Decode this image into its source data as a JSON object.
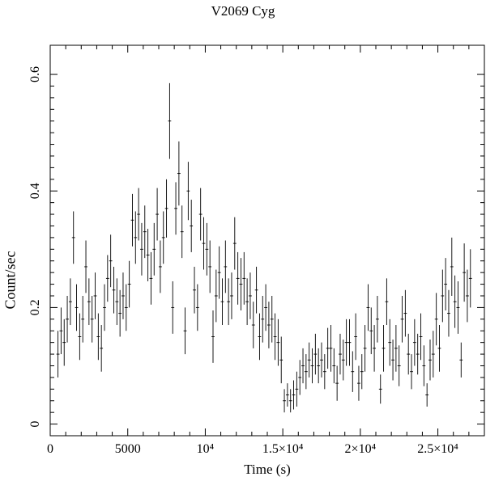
{
  "chart_data": {
    "type": "scatter",
    "title": "V2069 Cyg",
    "xlabel": "Time (s)",
    "ylabel": "Count/sec",
    "xlim": [
      0,
      28000
    ],
    "ylim": [
      -0.02,
      0.65
    ],
    "grid": false,
    "x_ticks": [
      {
        "value": 0,
        "label": "0"
      },
      {
        "value": 5000,
        "label": "5000"
      },
      {
        "value": 10000,
        "label": "10⁴"
      },
      {
        "value": 15000,
        "label": "1.5×10⁴"
      },
      {
        "value": 20000,
        "label": "2×10⁴"
      },
      {
        "value": 25000,
        "label": "2.5×10⁴"
      }
    ],
    "y_ticks": [
      {
        "value": 0,
        "label": "0"
      },
      {
        "value": 0.2,
        "label": "0.2"
      },
      {
        "value": 0.4,
        "label": "0.4"
      },
      {
        "value": 0.6,
        "label": "0.6"
      }
    ],
    "series": [
      {
        "x_err": 100,
        "points": [
          [
            500,
            0.12,
            0.04
          ],
          [
            700,
            0.16,
            0.04
          ],
          [
            900,
            0.14,
            0.04
          ],
          [
            1100,
            0.18,
            0.04
          ],
          [
            1300,
            0.21,
            0.04
          ],
          [
            1500,
            0.32,
            0.045
          ],
          [
            1700,
            0.2,
            0.04
          ],
          [
            1900,
            0.15,
            0.04
          ],
          [
            2100,
            0.18,
            0.04
          ],
          [
            2300,
            0.27,
            0.045
          ],
          [
            2500,
            0.21,
            0.04
          ],
          [
            2700,
            0.18,
            0.04
          ],
          [
            2900,
            0.22,
            0.04
          ],
          [
            3100,
            0.15,
            0.04
          ],
          [
            3300,
            0.13,
            0.04
          ],
          [
            3500,
            0.2,
            0.04
          ],
          [
            3700,
            0.25,
            0.04
          ],
          [
            3900,
            0.28,
            0.045
          ],
          [
            4100,
            0.23,
            0.04
          ],
          [
            4300,
            0.21,
            0.04
          ],
          [
            4500,
            0.19,
            0.04
          ],
          [
            4700,
            0.22,
            0.04
          ],
          [
            4900,
            0.2,
            0.04
          ],
          [
            5100,
            0.24,
            0.04
          ],
          [
            5300,
            0.35,
            0.045
          ],
          [
            5500,
            0.32,
            0.045
          ],
          [
            5700,
            0.36,
            0.045
          ],
          [
            5900,
            0.3,
            0.045
          ],
          [
            6100,
            0.33,
            0.045
          ],
          [
            6300,
            0.29,
            0.045
          ],
          [
            6500,
            0.25,
            0.045
          ],
          [
            6700,
            0.3,
            0.045
          ],
          [
            6900,
            0.36,
            0.045
          ],
          [
            7100,
            0.27,
            0.045
          ],
          [
            7300,
            0.32,
            0.045
          ],
          [
            7500,
            0.37,
            0.05
          ],
          [
            7700,
            0.52,
            0.065
          ],
          [
            7900,
            0.2,
            0.045
          ],
          [
            8100,
            0.37,
            0.045
          ],
          [
            8300,
            0.43,
            0.055
          ],
          [
            8500,
            0.33,
            0.045
          ],
          [
            8700,
            0.16,
            0.04
          ],
          [
            8900,
            0.4,
            0.05
          ],
          [
            9100,
            0.34,
            0.045
          ],
          [
            9300,
            0.23,
            0.04
          ],
          [
            9500,
            0.2,
            0.04
          ],
          [
            9700,
            0.36,
            0.045
          ],
          [
            9900,
            0.31,
            0.045
          ],
          [
            10100,
            0.3,
            0.045
          ],
          [
            10300,
            0.27,
            0.045
          ],
          [
            10500,
            0.15,
            0.045
          ],
          [
            10700,
            0.22,
            0.045
          ],
          [
            10900,
            0.26,
            0.045
          ],
          [
            11100,
            0.21,
            0.04
          ],
          [
            11300,
            0.27,
            0.045
          ],
          [
            11500,
            0.21,
            0.04
          ],
          [
            11700,
            0.22,
            0.04
          ],
          [
            11900,
            0.31,
            0.045
          ],
          [
            12100,
            0.25,
            0.045
          ],
          [
            12300,
            0.24,
            0.045
          ],
          [
            12500,
            0.25,
            0.045
          ],
          [
            12700,
            0.21,
            0.04
          ],
          [
            12900,
            0.22,
            0.04
          ],
          [
            13100,
            0.17,
            0.04
          ],
          [
            13300,
            0.23,
            0.04
          ],
          [
            13500,
            0.15,
            0.04
          ],
          [
            13700,
            0.18,
            0.04
          ],
          [
            13900,
            0.2,
            0.04
          ],
          [
            14100,
            0.17,
            0.04
          ],
          [
            14300,
            0.18,
            0.04
          ],
          [
            14500,
            0.15,
            0.04
          ],
          [
            14700,
            0.14,
            0.04
          ],
          [
            14900,
            0.11,
            0.04
          ],
          [
            15100,
            0.04,
            0.02
          ],
          [
            15300,
            0.05,
            0.02
          ],
          [
            15500,
            0.04,
            0.02
          ],
          [
            15700,
            0.05,
            0.025
          ],
          [
            15900,
            0.06,
            0.03
          ],
          [
            16100,
            0.08,
            0.03
          ],
          [
            16300,
            0.1,
            0.03
          ],
          [
            16500,
            0.09,
            0.03
          ],
          [
            16700,
            0.11,
            0.03
          ],
          [
            16900,
            0.1,
            0.03
          ],
          [
            17100,
            0.12,
            0.035
          ],
          [
            17300,
            0.1,
            0.03
          ],
          [
            17500,
            0.11,
            0.03
          ],
          [
            17700,
            0.09,
            0.03
          ],
          [
            17900,
            0.13,
            0.035
          ],
          [
            18100,
            0.13,
            0.04
          ],
          [
            18300,
            0.1,
            0.03
          ],
          [
            18500,
            0.07,
            0.03
          ],
          [
            18700,
            0.12,
            0.035
          ],
          [
            18900,
            0.11,
            0.035
          ],
          [
            19100,
            0.14,
            0.04
          ],
          [
            19300,
            0.14,
            0.04
          ],
          [
            19500,
            0.09,
            0.035
          ],
          [
            19700,
            0.15,
            0.04
          ],
          [
            19900,
            0.07,
            0.03
          ],
          [
            20100,
            0.09,
            0.03
          ],
          [
            20300,
            0.13,
            0.04
          ],
          [
            20500,
            0.2,
            0.04
          ],
          [
            20700,
            0.16,
            0.04
          ],
          [
            20900,
            0.13,
            0.04
          ],
          [
            21100,
            0.18,
            0.04
          ],
          [
            21300,
            0.06,
            0.025
          ],
          [
            21500,
            0.13,
            0.04
          ],
          [
            21700,
            0.21,
            0.04
          ],
          [
            21900,
            0.14,
            0.04
          ],
          [
            22100,
            0.11,
            0.035
          ],
          [
            22300,
            0.13,
            0.04
          ],
          [
            22500,
            0.1,
            0.035
          ],
          [
            22700,
            0.18,
            0.04
          ],
          [
            22900,
            0.19,
            0.04
          ],
          [
            23100,
            0.12,
            0.035
          ],
          [
            23300,
            0.09,
            0.03
          ],
          [
            23500,
            0.14,
            0.04
          ],
          [
            23700,
            0.12,
            0.035
          ],
          [
            23900,
            0.15,
            0.04
          ],
          [
            24100,
            0.1,
            0.035
          ],
          [
            24300,
            0.05,
            0.02
          ],
          [
            24500,
            0.11,
            0.035
          ],
          [
            24700,
            0.12,
            0.04
          ],
          [
            24900,
            0.18,
            0.045
          ],
          [
            25100,
            0.13,
            0.04
          ],
          [
            25300,
            0.22,
            0.045
          ],
          [
            25500,
            0.24,
            0.045
          ],
          [
            25700,
            0.19,
            0.04
          ],
          [
            25900,
            0.27,
            0.05
          ],
          [
            26100,
            0.21,
            0.045
          ],
          [
            26300,
            0.2,
            0.045
          ],
          [
            26500,
            0.11,
            0.03
          ],
          [
            26700,
            0.26,
            0.05
          ],
          [
            26900,
            0.22,
            0.045
          ],
          [
            27100,
            0.25,
            0.05
          ]
        ]
      }
    ]
  }
}
